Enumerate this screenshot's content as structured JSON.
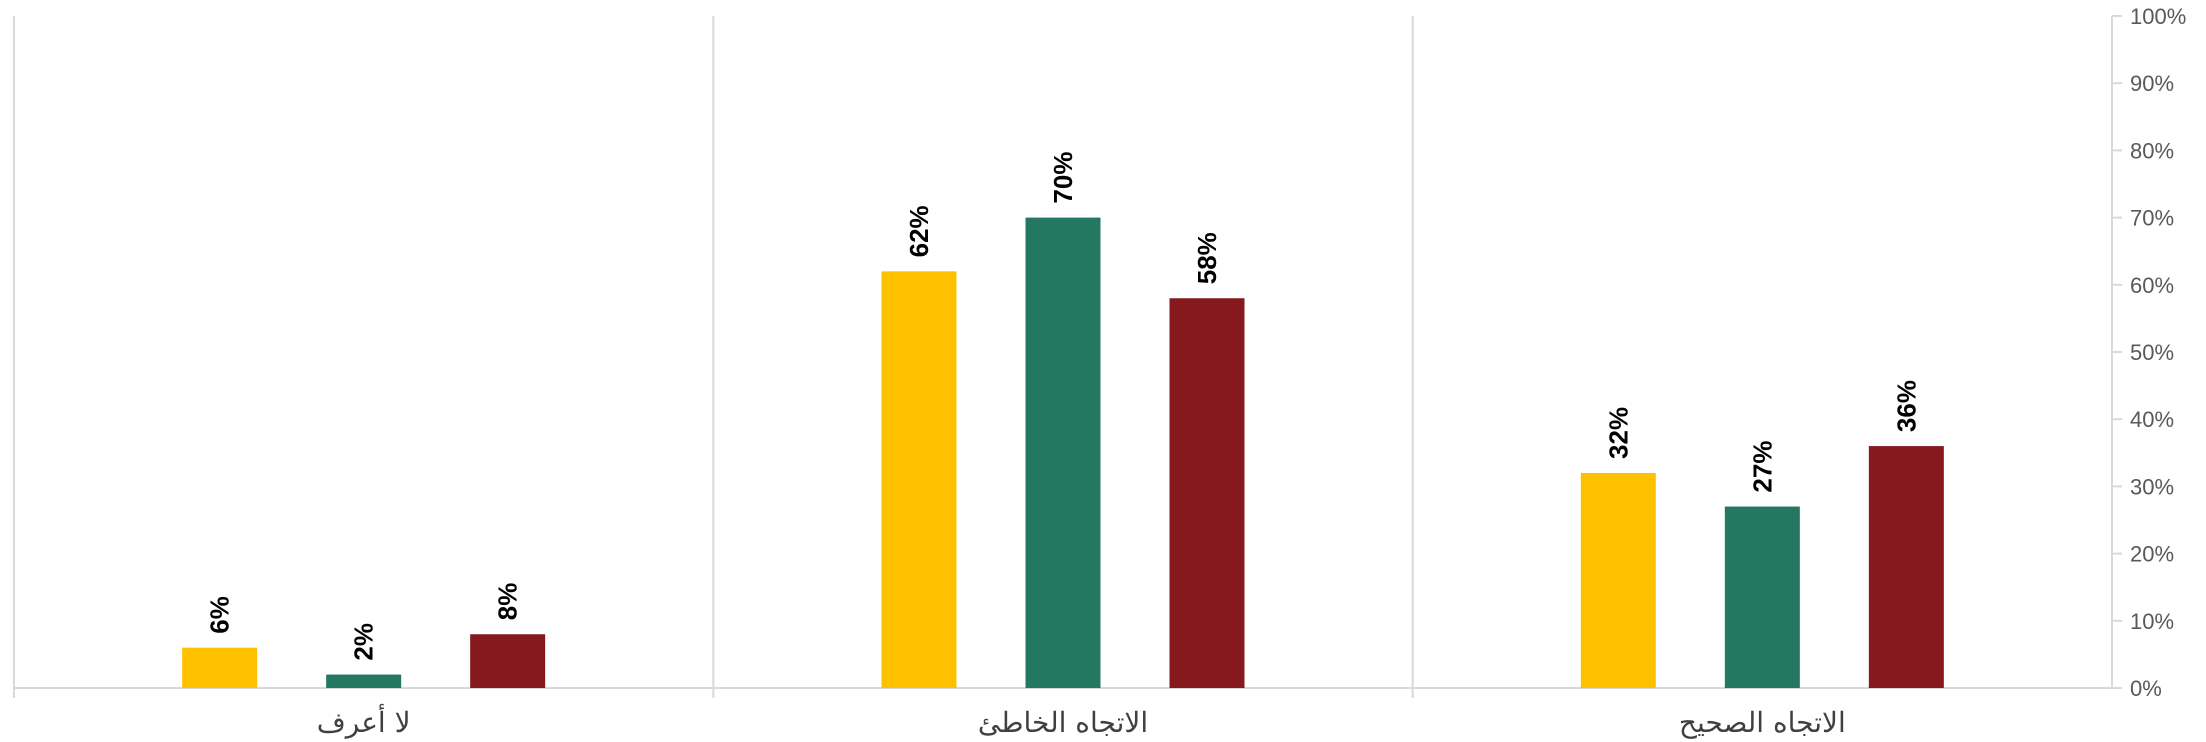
{
  "chart_data": {
    "type": "bar",
    "categories": [
      "لا أعرف",
      "الاتجاه الخاطئ",
      "الاتجاه الصحيح"
    ],
    "series": [
      {
        "values": [
          6,
          62,
          32
        ],
        "labels": [
          "6%",
          "62%",
          "32%"
        ],
        "color": "#FFC000"
      },
      {
        "values": [
          2,
          70,
          27
        ],
        "labels": [
          "2%",
          "70%",
          "27%"
        ],
        "color": "#247861"
      },
      {
        "values": [
          8,
          58,
          36
        ],
        "labels": [
          "8%",
          "58%",
          "36%"
        ],
        "color": "#85191E"
      }
    ],
    "y_ticks": [
      "0%",
      "10%",
      "20%",
      "30%",
      "40%",
      "50%",
      "60%",
      "70%",
      "80%",
      "90%",
      "100%"
    ],
    "ylim": [
      0,
      100
    ],
    "y_axis_position": "right",
    "grid": false,
    "category_separators": true,
    "legend": "none",
    "colors": {
      "axis": "#D9D9D9",
      "tick_text": "#595959",
      "category_text": "#404040",
      "label_text": "#000000"
    }
  }
}
